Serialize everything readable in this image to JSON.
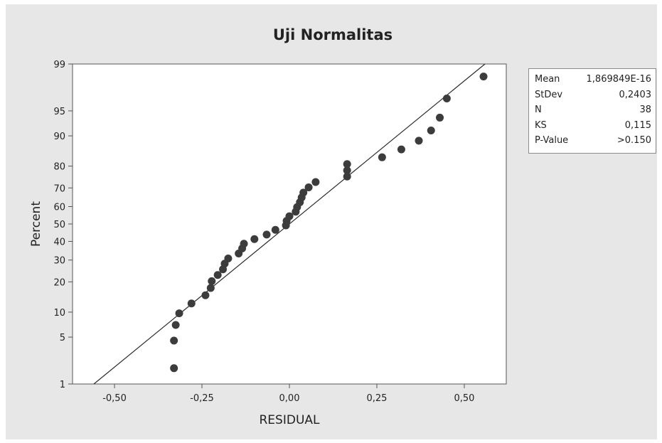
{
  "colors": {
    "figure_background": "#e7e7e7",
    "plot_background": "#ffffff",
    "marker": "#3c3c3c",
    "fit_line": "#2b2b2b",
    "axis": "#555555"
  },
  "stats": [
    {
      "label": "Mean",
      "value": "1,869849E-16"
    },
    {
      "label": "StDev",
      "value": "0,2403"
    },
    {
      "label": "N",
      "value": "38"
    },
    {
      "label": "KS",
      "value": "0,115"
    },
    {
      "label": "P-Value",
      "value": ">0.150"
    }
  ],
  "chart_data": {
    "type": "scatter",
    "title": "Uji Normalitas",
    "xlabel": "RESIDUAL",
    "ylabel": "Percent",
    "xlim": [
      -0.62,
      0.62
    ],
    "ylim": [
      1,
      99
    ],
    "y_scale": "normal-probability",
    "xticks": [
      -0.5,
      -0.25,
      0.0,
      0.25,
      0.5
    ],
    "xtick_labels": [
      "-0,50",
      "-0,25",
      "0,00",
      "0,25",
      "0,50"
    ],
    "yticks": [
      1,
      5,
      10,
      20,
      30,
      40,
      50,
      60,
      70,
      80,
      90,
      95,
      99
    ],
    "ytick_labels": [
      "1",
      "5",
      "10",
      "20",
      "30",
      "40",
      "50",
      "60",
      "70",
      "80",
      "90",
      "95",
      "99"
    ],
    "grid": false,
    "fit_line": {
      "mean": 0.0,
      "stdev": 0.2403
    },
    "points": [
      {
        "x": -0.33,
        "y": 1.8
      },
      {
        "x": -0.33,
        "y": 4.5
      },
      {
        "x": -0.325,
        "y": 7.1
      },
      {
        "x": -0.315,
        "y": 9.7
      },
      {
        "x": -0.28,
        "y": 12.4
      },
      {
        "x": -0.24,
        "y": 15.0
      },
      {
        "x": -0.225,
        "y": 17.6
      },
      {
        "x": -0.222,
        "y": 20.3
      },
      {
        "x": -0.205,
        "y": 22.9
      },
      {
        "x": -0.19,
        "y": 25.5
      },
      {
        "x": -0.185,
        "y": 28.2
      },
      {
        "x": -0.175,
        "y": 30.8
      },
      {
        "x": -0.145,
        "y": 33.4
      },
      {
        "x": -0.135,
        "y": 36.1
      },
      {
        "x": -0.13,
        "y": 38.7
      },
      {
        "x": -0.1,
        "y": 41.3
      },
      {
        "x": -0.065,
        "y": 43.9
      },
      {
        "x": -0.04,
        "y": 46.6
      },
      {
        "x": -0.01,
        "y": 49.2
      },
      {
        "x": -0.008,
        "y": 51.8
      },
      {
        "x": 0.0,
        "y": 54.5
      },
      {
        "x": 0.018,
        "y": 57.1
      },
      {
        "x": 0.022,
        "y": 59.7
      },
      {
        "x": 0.03,
        "y": 62.4
      },
      {
        "x": 0.035,
        "y": 65.0
      },
      {
        "x": 0.04,
        "y": 67.6
      },
      {
        "x": 0.055,
        "y": 70.3
      },
      {
        "x": 0.075,
        "y": 72.9
      },
      {
        "x": 0.165,
        "y": 75.5
      },
      {
        "x": 0.165,
        "y": 78.2
      },
      {
        "x": 0.165,
        "y": 80.8
      },
      {
        "x": 0.265,
        "y": 83.4
      },
      {
        "x": 0.32,
        "y": 86.1
      },
      {
        "x": 0.37,
        "y": 88.7
      },
      {
        "x": 0.405,
        "y": 91.3
      },
      {
        "x": 0.43,
        "y": 93.9
      },
      {
        "x": 0.45,
        "y": 96.6
      },
      {
        "x": 0.555,
        "y": 98.4
      }
    ]
  }
}
